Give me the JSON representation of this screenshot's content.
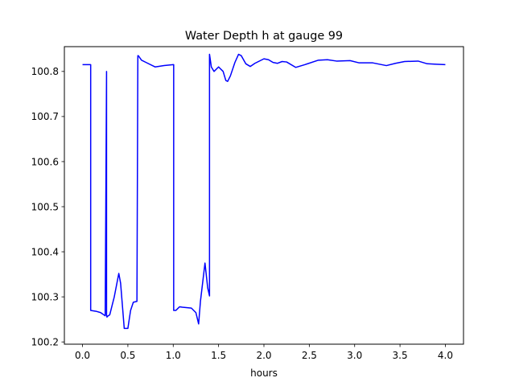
{
  "chart_data": {
    "type": "line",
    "title": "Water Depth h at gauge 99",
    "xlabel": "hours",
    "ylabel": "",
    "xlim": [
      -0.2,
      4.2
    ],
    "ylim": [
      100.195,
      100.855
    ],
    "xticks": [
      0.0,
      0.5,
      1.0,
      1.5,
      2.0,
      2.5,
      3.0,
      3.5,
      4.0
    ],
    "xtick_labels": [
      "0.0",
      "0.5",
      "1.0",
      "1.5",
      "2.0",
      "2.5",
      "3.0",
      "3.5",
      "4.0"
    ],
    "yticks": [
      100.2,
      100.3,
      100.4,
      100.5,
      100.6,
      100.7,
      100.8
    ],
    "ytick_labels": [
      "100.2",
      "100.3",
      "100.4",
      "100.5",
      "100.6",
      "100.7",
      "100.8"
    ],
    "grid": false,
    "legend": "none",
    "series": [
      {
        "color": "#0000ff",
        "x": [
          0.0,
          0.08,
          0.09,
          0.09,
          0.15,
          0.2,
          0.25,
          0.265,
          0.265,
          0.27,
          0.27,
          0.3,
          0.35,
          0.4,
          0.42,
          0.46,
          0.5,
          0.53,
          0.56,
          0.6,
          0.61,
          0.615,
          0.615,
          0.65,
          0.7,
          0.8,
          0.9,
          1.0,
          1.005,
          1.005,
          1.03,
          1.07,
          1.1,
          1.2,
          1.25,
          1.28,
          1.3,
          1.35,
          1.38,
          1.4,
          1.4,
          1.42,
          1.45,
          1.5,
          1.55,
          1.58,
          1.6,
          1.63,
          1.68,
          1.72,
          1.75,
          1.8,
          1.85,
          1.9,
          2.0,
          2.05,
          2.1,
          2.15,
          2.2,
          2.25,
          2.35,
          2.45,
          2.6,
          2.7,
          2.8,
          2.95,
          3.05,
          3.2,
          3.35,
          3.45,
          3.55,
          3.7,
          3.8,
          3.9,
          4.0
        ],
        "y": [
          100.815,
          100.815,
          100.815,
          100.27,
          100.268,
          100.265,
          100.258,
          100.8,
          100.26,
          100.255,
          100.256,
          100.26,
          100.3,
          100.352,
          100.33,
          100.23,
          100.23,
          100.27,
          100.288,
          100.29,
          100.835,
          100.835,
          100.835,
          100.825,
          100.82,
          100.81,
          100.813,
          100.815,
          100.815,
          100.27,
          100.27,
          100.278,
          100.277,
          100.275,
          100.265,
          100.24,
          100.29,
          100.375,
          100.32,
          100.302,
          100.838,
          100.81,
          100.8,
          100.81,
          100.8,
          100.78,
          100.778,
          100.79,
          100.82,
          100.838,
          100.835,
          100.817,
          100.811,
          100.818,
          100.828,
          100.826,
          100.82,
          100.818,
          100.822,
          100.821,
          100.809,
          100.815,
          100.825,
          100.826,
          100.823,
          100.824,
          100.819,
          100.819,
          100.813,
          100.818,
          100.822,
          100.823,
          100.817,
          100.816,
          100.815
        ]
      }
    ]
  }
}
